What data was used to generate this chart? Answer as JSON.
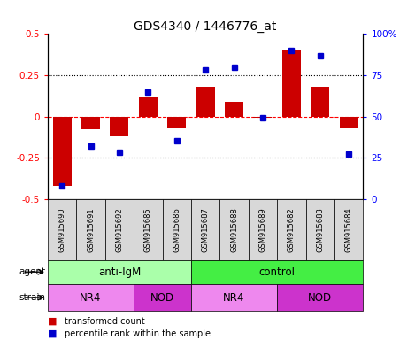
{
  "title": "GDS4340 / 1446776_at",
  "samples": [
    "GSM915690",
    "GSM915691",
    "GSM915692",
    "GSM915685",
    "GSM915686",
    "GSM915687",
    "GSM915688",
    "GSM915689",
    "GSM915682",
    "GSM915683",
    "GSM915684"
  ],
  "bar_values": [
    -0.42,
    -0.08,
    -0.12,
    0.12,
    -0.07,
    0.18,
    0.09,
    -0.01,
    0.4,
    0.18,
    -0.07
  ],
  "dot_values": [
    8,
    32,
    28,
    65,
    35,
    78,
    80,
    49,
    90,
    87,
    27
  ],
  "bar_color": "#cc0000",
  "dot_color": "#0000cc",
  "ylim_left": [
    -0.5,
    0.5
  ],
  "ylim_right": [
    0,
    100
  ],
  "yticks_left": [
    -0.5,
    -0.25,
    0,
    0.25,
    0.5
  ],
  "yticks_right": [
    0,
    25,
    50,
    75,
    100
  ],
  "hlines": [
    0.25,
    -0.25
  ],
  "agent_groups": [
    {
      "label": "anti-IgM",
      "start": 0,
      "end": 5,
      "color": "#aaffaa"
    },
    {
      "label": "control",
      "start": 5,
      "end": 11,
      "color": "#44ee44"
    }
  ],
  "strain_groups": [
    {
      "label": "NR4",
      "start": 0,
      "end": 3,
      "color": "#ee88ee"
    },
    {
      "label": "NOD",
      "start": 3,
      "end": 5,
      "color": "#cc33cc"
    },
    {
      "label": "NR4",
      "start": 5,
      "end": 8,
      "color": "#ee88ee"
    },
    {
      "label": "NOD",
      "start": 8,
      "end": 11,
      "color": "#cc33cc"
    }
  ],
  "legend": [
    {
      "label": "transformed count",
      "color": "#cc0000"
    },
    {
      "label": "percentile rank within the sample",
      "color": "#0000cc"
    }
  ],
  "title_fontsize": 10
}
